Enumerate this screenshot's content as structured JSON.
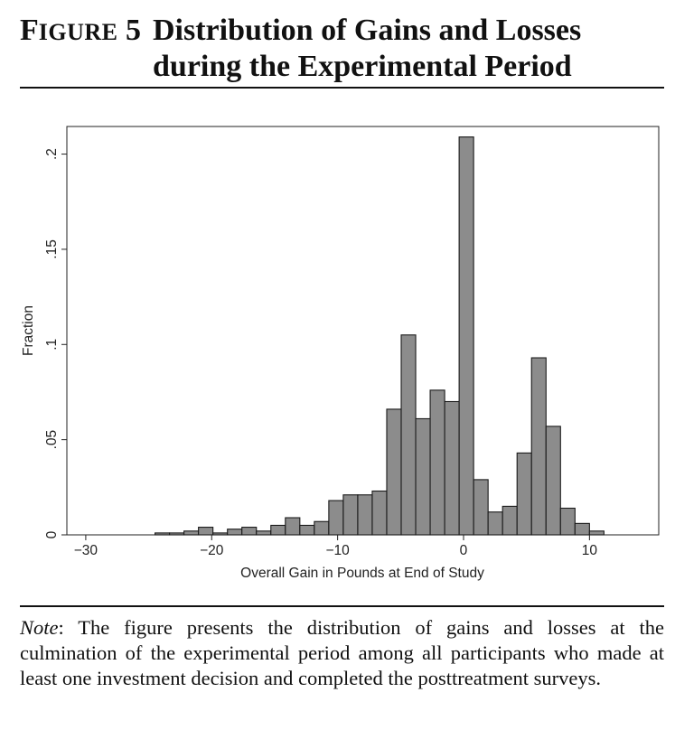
{
  "figure": {
    "label_first": "F",
    "label_rest": "IGURE",
    "label_number": "5",
    "title_line1": "Distribution of Gains and Losses",
    "title_line2": "during the Experimental Period"
  },
  "note": {
    "lead": "Note",
    "text": ": The figure presents the distribution of gains and losses at the culmination of the experimental period among all participants who made at least one investment decision and completed the posttreatment surveys."
  },
  "chart_data": {
    "type": "bar",
    "xlabel": "Overall Gain in Pounds at End of Study",
    "ylabel": "Fraction",
    "xlim": [
      -31.5,
      15.5
    ],
    "ylim": [
      0,
      0.2145
    ],
    "xticks": [
      -30,
      -20,
      -10,
      0,
      10
    ],
    "xtick_labels": [
      "−30",
      "−20",
      "−10",
      "0",
      "10"
    ],
    "yticks": [
      0,
      0.05,
      0.1,
      0.15,
      0.2
    ],
    "ytick_labels": [
      "0",
      ".05",
      ".1",
      ".15",
      ".2"
    ],
    "bin_width": 1.15,
    "colors": {
      "bar_fill": "#8c8c8c",
      "bar_stroke": "#1a1a1a"
    },
    "bins": [
      {
        "start": -24.5,
        "value": 0.001
      },
      {
        "start": -23.35,
        "value": 0.001
      },
      {
        "start": -22.2,
        "value": 0.002
      },
      {
        "start": -21.05,
        "value": 0.004
      },
      {
        "start": -19.9,
        "value": 0.001
      },
      {
        "start": -18.75,
        "value": 0.003
      },
      {
        "start": -17.6,
        "value": 0.004
      },
      {
        "start": -16.45,
        "value": 0.002
      },
      {
        "start": -15.3,
        "value": 0.005
      },
      {
        "start": -14.15,
        "value": 0.009
      },
      {
        "start": -13.0,
        "value": 0.005
      },
      {
        "start": -11.85,
        "value": 0.007
      },
      {
        "start": -10.7,
        "value": 0.018
      },
      {
        "start": -9.55,
        "value": 0.021
      },
      {
        "start": -8.4,
        "value": 0.021
      },
      {
        "start": -7.25,
        "value": 0.023
      },
      {
        "start": -6.1,
        "value": 0.066
      },
      {
        "start": -4.95,
        "value": 0.105
      },
      {
        "start": -3.8,
        "value": 0.061
      },
      {
        "start": -2.65,
        "value": 0.076
      },
      {
        "start": -1.5,
        "value": 0.07
      },
      {
        "start": -0.35,
        "value": 0.209
      },
      {
        "start": 0.8,
        "value": 0.029
      },
      {
        "start": 1.95,
        "value": 0.012
      },
      {
        "start": 3.1,
        "value": 0.015
      },
      {
        "start": 4.25,
        "value": 0.043
      },
      {
        "start": 5.4,
        "value": 0.093
      },
      {
        "start": 6.55,
        "value": 0.057
      },
      {
        "start": 7.7,
        "value": 0.014
      },
      {
        "start": 8.85,
        "value": 0.006
      },
      {
        "start": 10.0,
        "value": 0.002
      }
    ]
  }
}
